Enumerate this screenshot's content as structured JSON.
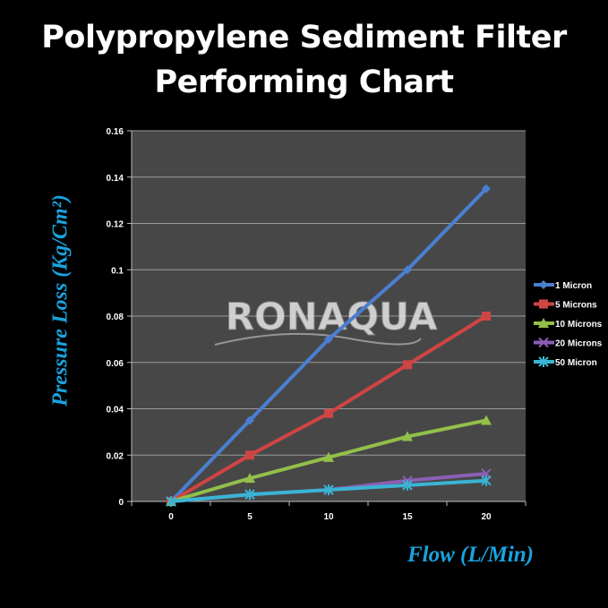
{
  "chart_data": {
    "type": "line",
    "title": [
      "Polypropylene Sediment Filter",
      "Performing Chart"
    ],
    "xlabel": "Flow (L/Min)",
    "ylabel": "Pressure Loss (Kg/Cm²)",
    "categories": [
      "0",
      "5",
      "10",
      "15",
      "20"
    ],
    "ylim": [
      0,
      0.16
    ],
    "yticks": [
      "0",
      "0.02",
      "0.04",
      "0.06",
      "0.08",
      "0.1",
      "0.12",
      "0.14",
      "0.16"
    ],
    "grid": true,
    "legend_position": "right",
    "series": [
      {
        "name": "1 Micron",
        "values": [
          0,
          0.035,
          0.07,
          0.1,
          0.135
        ],
        "color": "#4a7fd0",
        "marker": "diamond"
      },
      {
        "name": "5 Microns",
        "values": [
          0,
          0.02,
          0.038,
          0.059,
          0.08
        ],
        "color": "#d04444",
        "marker": "square"
      },
      {
        "name": "10 Microns",
        "values": [
          0,
          0.01,
          0.019,
          0.028,
          0.035
        ],
        "color": "#92c04a",
        "marker": "triangle"
      },
      {
        "name": "20 Microns",
        "values": [
          0,
          0.003,
          0.005,
          0.009,
          0.012
        ],
        "color": "#8a5fb5",
        "marker": "x"
      },
      {
        "name": "50 Micron",
        "values": [
          0,
          0.003,
          0.005,
          0.007,
          0.009
        ],
        "color": "#3ab4d4",
        "marker": "star"
      }
    ]
  },
  "watermark": "RONAQUA",
  "colors": {
    "background": "#000000",
    "plot_area": "#474747",
    "gridline": "#9a9a9a",
    "axis_label": "#1aa3e0"
  }
}
